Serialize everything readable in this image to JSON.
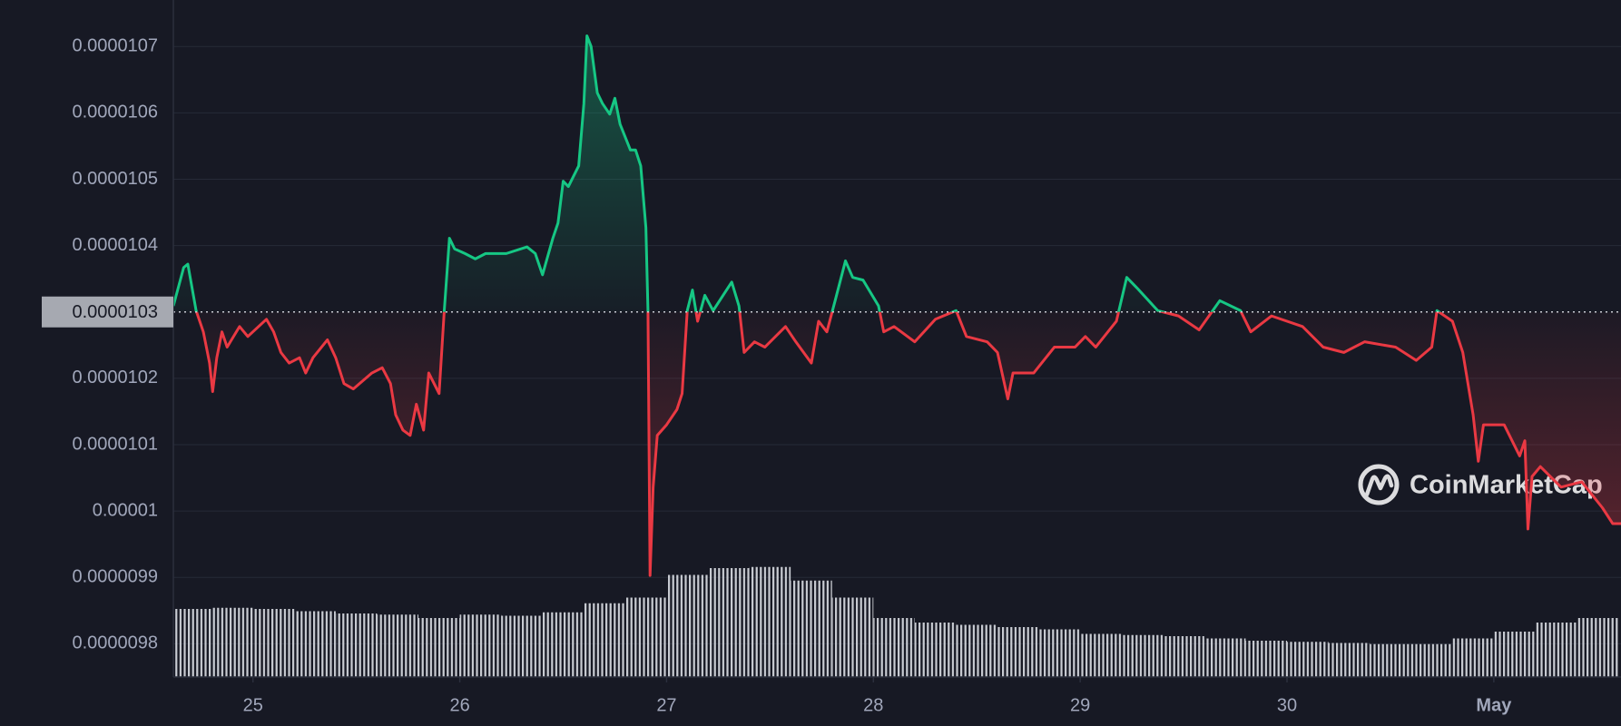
{
  "chart_data": {
    "type": "line",
    "watermark": "CoinMarketCap",
    "x": [
      24.615,
      24.665,
      24.685,
      24.725,
      24.76,
      24.79,
      24.805,
      24.825,
      24.85,
      24.875,
      24.935,
      24.975,
      25.065,
      25.1,
      25.135,
      25.175,
      25.225,
      25.255,
      25.29,
      25.36,
      25.4,
      25.44,
      25.485,
      25.575,
      25.625,
      25.665,
      25.69,
      25.725,
      25.76,
      25.79,
      25.825,
      25.85,
      25.9,
      25.925,
      25.95,
      25.975,
      26.025,
      26.075,
      26.125,
      26.225,
      26.325,
      26.365,
      26.4,
      26.45,
      26.475,
      26.5,
      26.525,
      26.575,
      26.6,
      26.615,
      26.635,
      26.665,
      26.69,
      26.725,
      26.75,
      26.775,
      26.825,
      26.85,
      26.875,
      26.9,
      26.91,
      26.92,
      26.935,
      26.955,
      27,
      27.05,
      27.075,
      27.1,
      27.125,
      27.15,
      27.185,
      27.225,
      27.315,
      27.35,
      27.375,
      27.425,
      27.475,
      27.575,
      27.625,
      27.7,
      27.735,
      27.775,
      27.815,
      27.865,
      27.9,
      27.95,
      28.025,
      28.05,
      28.1,
      28.2,
      28.3,
      28.4,
      28.45,
      28.55,
      28.6,
      28.65,
      28.675,
      28.775,
      28.875,
      28.975,
      29.025,
      29.075,
      29.175,
      29.225,
      29.275,
      29.375,
      29.475,
      29.575,
      29.675,
      29.775,
      29.825,
      29.925,
      30.075,
      30.175,
      30.275,
      30.375,
      30.525,
      30.625,
      30.7,
      30.725,
      30.8,
      30.85,
      30.9,
      30.925,
      30.95,
      31.05,
      31.125,
      31.15,
      31.165,
      31.185,
      31.225,
      31.325,
      31.425,
      31.525,
      31.575,
      31.615
    ],
    "series": [
      {
        "color": "#16c784",
        "color_below": "#ea3943",
        "values": [
          1.0309e-05,
          1.0367e-05,
          1.0372e-05,
          1.0302e-05,
          1.027e-05,
          1.0223e-05,
          1.018e-05,
          1.0231e-05,
          1.027e-05,
          1.0247e-05,
          1.0278e-05,
          1.0263e-05,
          1.0289e-05,
          1.027e-05,
          1.0239e-05,
          1.0223e-05,
          1.0231e-05,
          1.0208e-05,
          1.0231e-05,
          1.0258e-05,
          1.0231e-05,
          1.0192e-05,
          1.0184e-05,
          1.0208e-05,
          1.0216e-05,
          1.0192e-05,
          1.0145e-05,
          1.0122e-05,
          1.0114e-05,
          1.0161e-05,
          1.0122e-05,
          1.0208e-05,
          1.0177e-05,
          1.0302e-05,
          1.0411e-05,
          1.0395e-05,
          1.0388e-05,
          1.038e-05,
          1.0388e-05,
          1.0388e-05,
          1.0398e-05,
          1.0388e-05,
          1.0356e-05,
          1.0411e-05,
          1.0434e-05,
          1.0497e-05,
          1.0489e-05,
          1.052e-05,
          1.0614e-05,
          1.0716e-05,
          1.07e-05,
          1.063e-05,
          1.0614e-05,
          1.0598e-05,
          1.0622e-05,
          1.0583e-05,
          1.0544e-05,
          1.0544e-05,
          1.052e-05,
          1.0427e-05,
          1.0302e-05,
          9.903e-06,
          1.0036e-05,
          1.0114e-05,
          1.013e-05,
          1.0153e-05,
          1.0177e-05,
          1.0302e-05,
          1.0333e-05,
          1.0286e-05,
          1.0325e-05,
          1.0302e-05,
          1.0345e-05,
          1.0309e-05,
          1.0239e-05,
          1.0255e-05,
          1.0247e-05,
          1.0278e-05,
          1.0255e-05,
          1.0223e-05,
          1.0286e-05,
          1.027e-05,
          1.0317e-05,
          1.0377e-05,
          1.0352e-05,
          1.0348e-05,
          1.0309e-05,
          1.027e-05,
          1.0278e-05,
          1.0255e-05,
          1.0289e-05,
          1.0302e-05,
          1.0263e-05,
          1.0255e-05,
          1.0239e-05,
          1.0169e-05,
          1.0208e-05,
          1.0208e-05,
          1.0247e-05,
          1.0247e-05,
          1.0263e-05,
          1.0247e-05,
          1.0286e-05,
          1.0352e-05,
          1.0336e-05,
          1.0302e-05,
          1.0294e-05,
          1.0273e-05,
          1.0317e-05,
          1.0302e-05,
          1.027e-05,
          1.0294e-05,
          1.0278e-05,
          1.0247e-05,
          1.0239e-05,
          1.0255e-05,
          1.0247e-05,
          1.0227e-05,
          1.0247e-05,
          1.0302e-05,
          1.0286e-05,
          1.0239e-05,
          1.0145e-05,
          1.0075e-05,
          1.013e-05,
          1.013e-05,
          1.0083e-05,
          1.0106e-05,
          9.973e-06,
          1.0052e-05,
          1.0067e-05,
          1.0036e-05,
          1.0044e-05,
          1.0005e-05,
          9.981e-06,
          9.981e-06
        ]
      }
    ],
    "baseline": 1.03e-05,
    "xlim": [
      24.615,
      31.615
    ],
    "xticks": [
      25,
      26,
      27,
      28,
      29,
      30,
      {
        "value": 31,
        "label": "May"
      }
    ],
    "ylim": [
      9.75e-06,
      1.077e-05
    ],
    "yticks": [
      9.8e-06,
      9.9e-06,
      1e-05,
      1.01e-05,
      1.02e-05,
      1.04e-05,
      1.05e-05,
      1.06e-05,
      1.07e-05
    ],
    "grid": true,
    "volume": {
      "color": "#c9ccd3",
      "ylim": [
        0,
        100
      ],
      "x": [
        24.7,
        24.9,
        25.1,
        25.3,
        25.5,
        25.7,
        25.9,
        26.1,
        26.3,
        26.5,
        26.7,
        26.9,
        27.1,
        27.3,
        27.5,
        27.7,
        27.9,
        28.1,
        28.3,
        28.5,
        28.7,
        28.9,
        29.1,
        29.3,
        29.5,
        29.7,
        29.9,
        30.1,
        30.3,
        30.5,
        30.7,
        30.9,
        31.1,
        31.3,
        31.5
      ],
      "values": [
        60,
        61,
        60,
        58,
        56,
        55,
        52,
        55,
        54,
        57,
        65,
        70,
        90,
        96,
        97,
        85,
        70,
        52,
        48,
        46,
        44,
        42,
        38,
        37,
        36,
        34,
        32,
        31,
        30,
        29,
        29,
        34,
        40,
        48,
        52
      ]
    }
  }
}
